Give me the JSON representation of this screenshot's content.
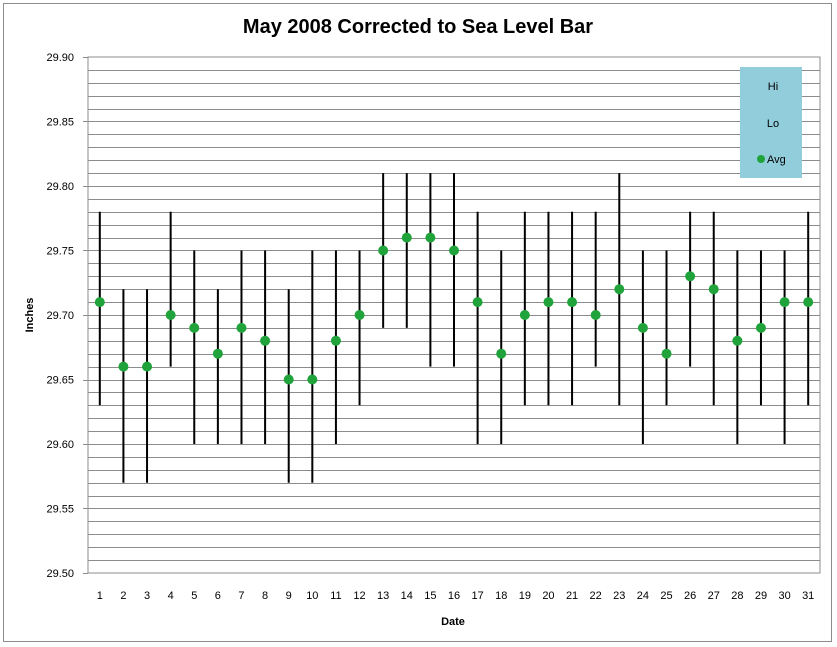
{
  "chart_data": {
    "type": "scatter",
    "title": "May 2008 Corrected to Sea Level Bar",
    "xlabel": "Date",
    "ylabel": "Inches",
    "ylim": [
      29.5,
      29.9
    ],
    "y_ticks": [
      "29.50",
      "29.55",
      "29.60",
      "29.65",
      "29.70",
      "29.75",
      "29.80",
      "29.85",
      "29.90"
    ],
    "grid": true,
    "legend_position": "top-right",
    "x": [
      1,
      2,
      3,
      4,
      5,
      6,
      7,
      8,
      9,
      10,
      11,
      12,
      13,
      14,
      15,
      16,
      17,
      18,
      19,
      20,
      21,
      22,
      23,
      24,
      25,
      26,
      27,
      28,
      29,
      30,
      31
    ],
    "series": [
      {
        "name": "Hi",
        "values": [
          29.78,
          29.72,
          29.72,
          29.78,
          29.75,
          29.72,
          29.75,
          29.75,
          29.72,
          29.75,
          29.75,
          29.75,
          29.81,
          29.81,
          29.81,
          29.81,
          29.78,
          29.75,
          29.78,
          29.78,
          29.78,
          29.78,
          29.81,
          29.75,
          29.75,
          29.78,
          29.78,
          29.75,
          29.75,
          29.75,
          29.78
        ]
      },
      {
        "name": "Lo",
        "values": [
          29.63,
          29.57,
          29.57,
          29.66,
          29.6,
          29.6,
          29.6,
          29.6,
          29.57,
          29.57,
          29.6,
          29.63,
          29.69,
          29.69,
          29.66,
          29.66,
          29.6,
          29.6,
          29.63,
          29.63,
          29.63,
          29.66,
          29.63,
          29.6,
          29.63,
          29.66,
          29.63,
          29.6,
          29.63,
          29.6,
          29.63
        ]
      },
      {
        "name": "Avg",
        "values": [
          29.71,
          29.66,
          29.66,
          29.7,
          29.69,
          29.67,
          29.69,
          29.68,
          29.65,
          29.65,
          29.68,
          29.7,
          29.75,
          29.76,
          29.76,
          29.75,
          29.71,
          29.67,
          29.7,
          29.71,
          29.71,
          29.7,
          29.72,
          29.69,
          29.67,
          29.73,
          29.72,
          29.68,
          29.69,
          29.71,
          29.71
        ]
      }
    ],
    "colors": {
      "avg": "#1fa33a",
      "bar": "#000000",
      "legend_bg": "#92cddc",
      "grid": "#8c8c8c",
      "frame": "#8c8c8c"
    }
  }
}
